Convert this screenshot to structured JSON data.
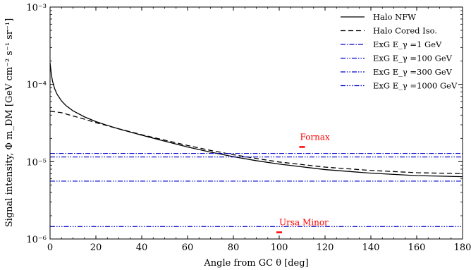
{
  "chart_data": {
    "type": "line",
    "xlabel": "Angle from GC θ [deg]",
    "ylabel": "Signal intensity, Φ m_DM [GeV cm⁻² s⁻¹ sr⁻¹]",
    "xlim": [
      0,
      180
    ],
    "ylim": [
      1e-06,
      0.001
    ],
    "yscale": "log",
    "grid": false,
    "legend_position": "top-right",
    "x_ticks": [
      "0",
      "20",
      "40",
      "60",
      "80",
      "100",
      "120",
      "140",
      "160",
      "180"
    ],
    "y_ticks": [
      "10⁻⁶",
      "10⁻⁵",
      "10⁻⁴",
      "10⁻³"
    ],
    "series": [
      {
        "name": "Halo NFW",
        "style": "solid",
        "color": "#000000",
        "x": [
          0,
          0.5,
          1,
          2,
          3,
          5,
          7,
          10,
          15,
          20,
          25,
          30,
          40,
          50,
          60,
          70,
          80,
          90,
          100,
          120,
          140,
          160,
          180
        ],
        "y": [
          0.00019,
          0.00014,
          0.000112,
          8.8e-05,
          7.5e-05,
          6.1e-05,
          5.3e-05,
          4.55e-05,
          3.8e-05,
          3.3e-05,
          2.95e-05,
          2.65e-05,
          2.2e-05,
          1.84e-05,
          1.55e-05,
          1.33e-05,
          1.16e-05,
          1.03e-05,
          9.3e-06,
          7.9e-06,
          7.1e-06,
          6.6e-06,
          6.4e-06
        ]
      },
      {
        "name": "Halo Cored Iso.",
        "style": "dashed",
        "color": "#000000",
        "x": [
          0,
          5,
          10,
          15,
          20,
          25,
          30,
          40,
          50,
          60,
          70,
          80,
          90,
          100,
          120,
          140,
          160,
          180
        ],
        "y": [
          4.5e-05,
          4.3e-05,
          3.9e-05,
          3.55e-05,
          3.2e-05,
          2.92e-05,
          2.66e-05,
          2.23e-05,
          1.9e-05,
          1.62e-05,
          1.4e-05,
          1.23e-05,
          1.1e-05,
          9.9e-06,
          8.5e-06,
          7.7e-06,
          7.2e-06,
          7e-06
        ]
      },
      {
        "name": "ExG E_γ =1 GeV",
        "style": "dashdot",
        "color": "#0000cc",
        "constant": 1.28e-05
      },
      {
        "name": "ExG E_γ =100 GeV",
        "style": "dashdotdot",
        "color": "#0000cc",
        "constant": 1.15e-05
      },
      {
        "name": "ExG E_γ =300 GeV",
        "style": "dashdotdot",
        "color": "#0000cc",
        "constant": 5.6e-06
      },
      {
        "name": "ExG E_γ =1000 GeV",
        "style": "dashdotdotdot",
        "color": "#0000cc",
        "constant": 1.45e-06
      }
    ],
    "annotations": [
      {
        "text": "Fornax",
        "x": 110,
        "y": 1.55e-05,
        "color": "#ff0000"
      },
      {
        "text": "Ursa Minor",
        "x": 100,
        "y": 1.22e-06,
        "color": "#ff0000"
      }
    ]
  }
}
